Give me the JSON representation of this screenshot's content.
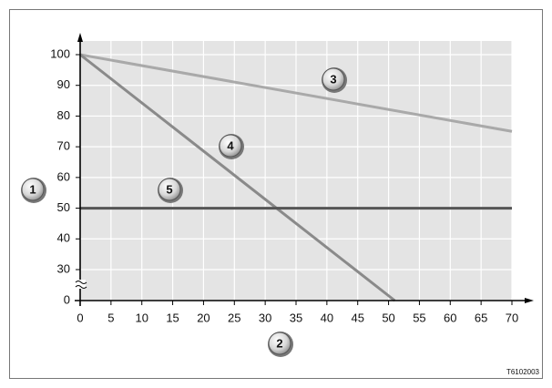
{
  "chart_data": {
    "type": "line",
    "xlim": [
      0,
      70
    ],
    "xticks": [
      0,
      5,
      10,
      15,
      20,
      25,
      30,
      35,
      40,
      45,
      50,
      55,
      60,
      65,
      70
    ],
    "ylim": [
      0,
      100
    ],
    "yticks": [
      0,
      30,
      40,
      50,
      60,
      70,
      80,
      90,
      100
    ],
    "y_break": [
      0,
      30
    ],
    "grid": true,
    "series": [
      {
        "color": "#a9a9a9",
        "x": [
          0,
          70
        ],
        "values": [
          100,
          75
        ]
      },
      {
        "color": "#8a8a8a",
        "x": [
          0,
          51
        ],
        "values": [
          100,
          0
        ]
      },
      {
        "color": "#555555",
        "x": [
          0,
          70
        ],
        "values": [
          50,
          50
        ]
      }
    ],
    "annotations": [
      "1",
      "2",
      "3",
      "4",
      "5"
    ],
    "code": "T6102003"
  }
}
